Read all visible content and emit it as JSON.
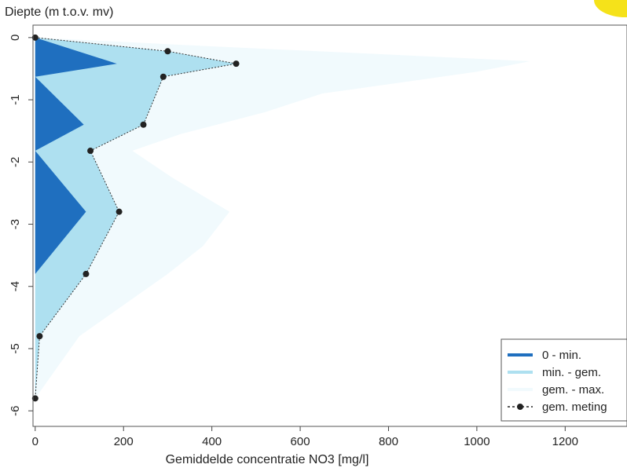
{
  "chart_data": {
    "type": "area",
    "ylabel": "Diepte (m t.o.v. mv)",
    "xlabel": "Gemiddelde concentratie NO3 [mg/l]",
    "xlim": [
      -5,
      1340
    ],
    "ylim": [
      -6.25,
      0.2
    ],
    "x_ticks": [
      0,
      200,
      400,
      600,
      800,
      1000,
      1200
    ],
    "y_ticks": [
      0,
      -1,
      -2,
      -3,
      -4,
      -5,
      -6
    ],
    "grid": false,
    "legend_position": "bottom-right",
    "colors": {
      "min": "#1f6fbf",
      "gem": "#aee0f0",
      "max": "#f1fafd",
      "meting": "#222222"
    },
    "legend": [
      {
        "label": "0 - min.",
        "style": "line",
        "color": "#1f6fbf"
      },
      {
        "label": "min. - gem.",
        "style": "line",
        "color": "#aee0f0"
      },
      {
        "label": "gem. - max.",
        "style": "line",
        "color": "#f1fafd"
      },
      {
        "label": "gem. meting",
        "style": "dashed-point",
        "color": "#222222"
      }
    ],
    "series": [
      {
        "name": "0 - min.",
        "points": [
          {
            "x": 0,
            "y": 0
          },
          {
            "x": 185,
            "y": -0.42
          },
          {
            "x": 0,
            "y": -0.63
          },
          {
            "x": 110,
            "y": -1.4
          },
          {
            "x": 0,
            "y": -1.82
          },
          {
            "x": 115,
            "y": -2.8
          },
          {
            "x": 0,
            "y": -3.8
          },
          {
            "x": 0,
            "y": -4.8
          },
          {
            "x": 0,
            "y": -5.8
          }
        ]
      },
      {
        "name": "min. - gem.",
        "points": [
          {
            "x": 0,
            "y": 0
          },
          {
            "x": 300,
            "y": -0.22
          },
          {
            "x": 455,
            "y": -0.42
          },
          {
            "x": 290,
            "y": -0.63
          },
          {
            "x": 245,
            "y": -1.4
          },
          {
            "x": 125,
            "y": -1.82
          },
          {
            "x": 190,
            "y": -2.8
          },
          {
            "x": 115,
            "y": -3.8
          },
          {
            "x": 10,
            "y": -4.8
          },
          {
            "x": 0,
            "y": -5.8
          }
        ]
      },
      {
        "name": "gem. - max.",
        "points": [
          {
            "x": 0,
            "y": 0
          },
          {
            "x": 340,
            "y": -0.12
          },
          {
            "x": 1120,
            "y": -0.38
          },
          {
            "x": 1000,
            "y": -0.55
          },
          {
            "x": 650,
            "y": -0.9
          },
          {
            "x": 520,
            "y": -1.2
          },
          {
            "x": 330,
            "y": -1.55
          },
          {
            "x": 220,
            "y": -1.82
          },
          {
            "x": 310,
            "y": -2.25
          },
          {
            "x": 440,
            "y": -2.8
          },
          {
            "x": 380,
            "y": -3.35
          },
          {
            "x": 300,
            "y": -3.8
          },
          {
            "x": 200,
            "y": -4.3
          },
          {
            "x": 100,
            "y": -4.8
          },
          {
            "x": 0,
            "y": -5.8
          }
        ]
      },
      {
        "name": "gem. meting",
        "points": [
          {
            "x": 0,
            "y": 0
          },
          {
            "x": 300,
            "y": -0.22
          },
          {
            "x": 455,
            "y": -0.42
          },
          {
            "x": 290,
            "y": -0.63
          },
          {
            "x": 245,
            "y": -1.4
          },
          {
            "x": 125,
            "y": -1.82
          },
          {
            "x": 190,
            "y": -2.8
          },
          {
            "x": 115,
            "y": -3.8
          },
          {
            "x": 10,
            "y": -4.8
          },
          {
            "x": 0,
            "y": -5.8
          }
        ]
      }
    ]
  }
}
